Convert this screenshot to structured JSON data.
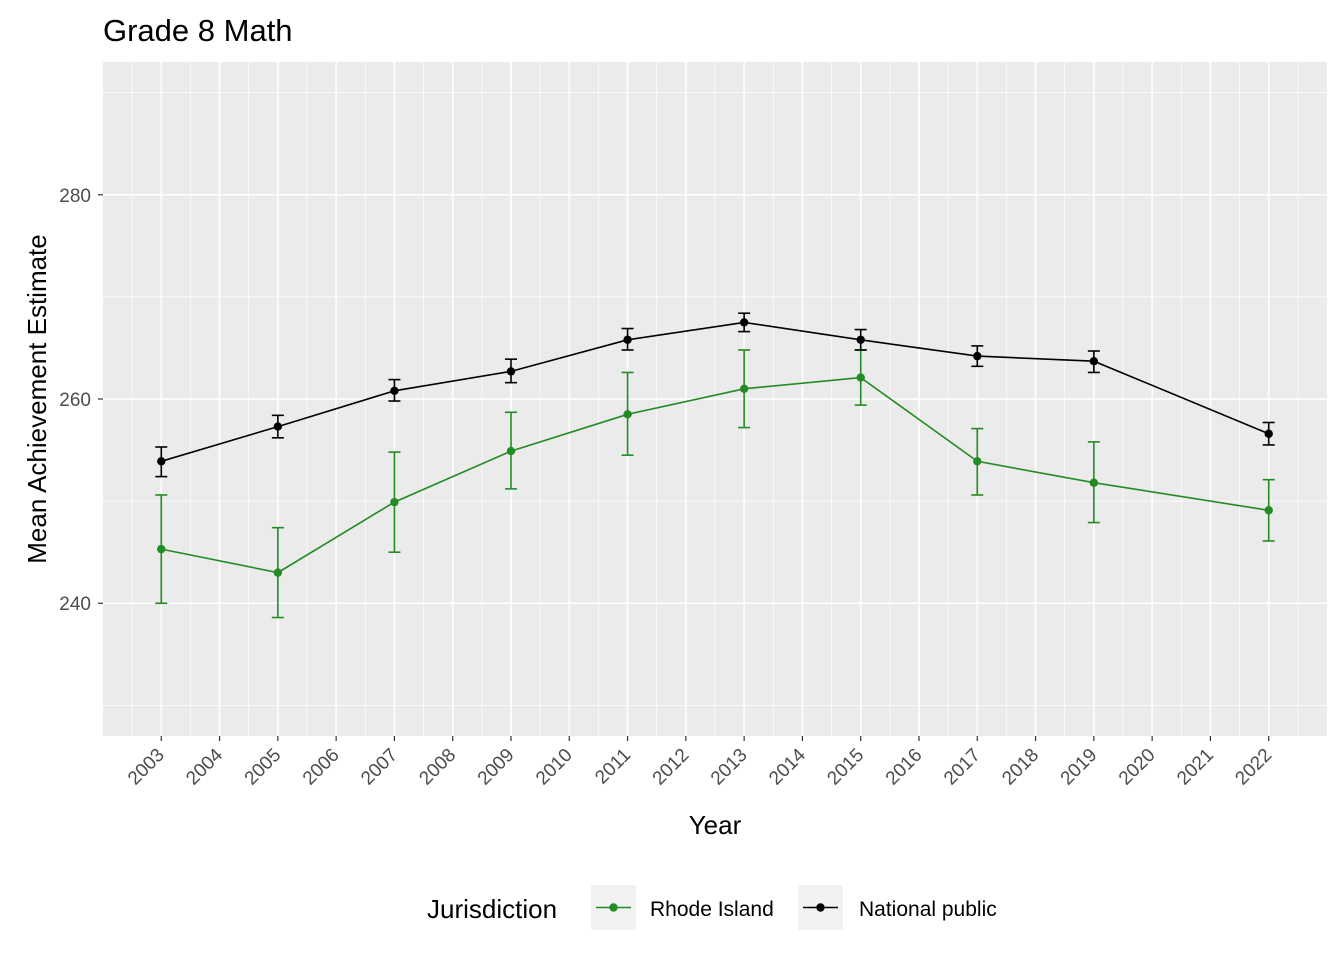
{
  "chart_data": {
    "type": "line",
    "title": "Grade 8 Math",
    "xlabel": "Year",
    "ylabel": "Mean Achievement Estimate",
    "x_ticks": [
      "2003",
      "2004",
      "2005",
      "2006",
      "2007",
      "2008",
      "2009",
      "2010",
      "2011",
      "2012",
      "2013",
      "2014",
      "2015",
      "2016",
      "2017",
      "2018",
      "2019",
      "2020",
      "2021",
      "2022"
    ],
    "y_ticks": [
      240,
      260,
      280
    ],
    "xlim": [
      2002,
      2023
    ],
    "ylim": [
      227,
      293
    ],
    "grid": true,
    "legend": {
      "title": "Jurisdiction",
      "placement": "bottom"
    },
    "series": [
      {
        "name": "Rhode Island",
        "color": "#228B22",
        "points": [
          {
            "x": 2003,
            "y": 245.3,
            "lower": 240.0,
            "upper": 250.6
          },
          {
            "x": 2005,
            "y": 243.0,
            "lower": 238.6,
            "upper": 247.4
          },
          {
            "x": 2007,
            "y": 249.9,
            "lower": 245.0,
            "upper": 254.8
          },
          {
            "x": 2009,
            "y": 254.9,
            "lower": 251.2,
            "upper": 258.7
          },
          {
            "x": 2011,
            "y": 258.5,
            "lower": 254.5,
            "upper": 262.6
          },
          {
            "x": 2013,
            "y": 261.0,
            "lower": 257.2,
            "upper": 264.8
          },
          {
            "x": 2015,
            "y": 262.1,
            "lower": 259.4,
            "upper": 264.8
          },
          {
            "x": 2017,
            "y": 253.9,
            "lower": 250.6,
            "upper": 257.1
          },
          {
            "x": 2019,
            "y": 251.8,
            "lower": 247.9,
            "upper": 255.8
          },
          {
            "x": 2022,
            "y": 249.1,
            "lower": 246.1,
            "upper": 252.1
          }
        ]
      },
      {
        "name": "National public",
        "color": "#000000",
        "points": [
          {
            "x": 2003,
            "y": 253.9,
            "lower": 252.4,
            "upper": 255.3
          },
          {
            "x": 2005,
            "y": 257.3,
            "lower": 256.2,
            "upper": 258.4
          },
          {
            "x": 2007,
            "y": 260.8,
            "lower": 259.8,
            "upper": 261.9
          },
          {
            "x": 2009,
            "y": 262.7,
            "lower": 261.6,
            "upper": 263.9
          },
          {
            "x": 2011,
            "y": 265.8,
            "lower": 264.8,
            "upper": 266.9
          },
          {
            "x": 2013,
            "y": 267.5,
            "lower": 266.6,
            "upper": 268.4
          },
          {
            "x": 2015,
            "y": 265.8,
            "lower": 264.8,
            "upper": 266.8
          },
          {
            "x": 2017,
            "y": 264.2,
            "lower": 263.2,
            "upper": 265.2
          },
          {
            "x": 2019,
            "y": 263.7,
            "lower": 262.6,
            "upper": 264.7
          },
          {
            "x": 2022,
            "y": 256.6,
            "lower": 255.5,
            "upper": 257.7
          }
        ]
      }
    ]
  }
}
